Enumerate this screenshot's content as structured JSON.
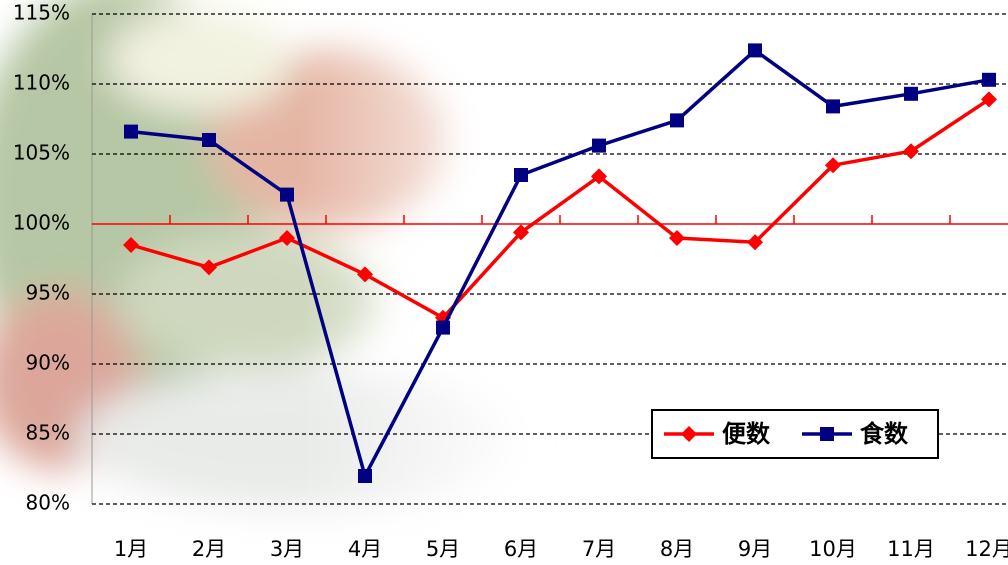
{
  "chart_data": {
    "type": "line",
    "categories": [
      "1月",
      "2月",
      "3月",
      "4月",
      "5月",
      "6月",
      "7月",
      "8月",
      "9月",
      "10月",
      "11月",
      "12月"
    ],
    "series": [
      {
        "name": "便数",
        "color": "#ff0000",
        "marker": "diamond",
        "values": [
          98.5,
          96.9,
          99.0,
          96.4,
          93.3,
          99.4,
          103.4,
          99.0,
          98.7,
          104.2,
          105.2,
          108.9
        ]
      },
      {
        "name": "食数",
        "color": "#000080",
        "marker": "square",
        "values": [
          106.6,
          106.0,
          102.1,
          82.0,
          92.6,
          103.5,
          105.6,
          107.4,
          112.4,
          108.4,
          109.3,
          110.3
        ]
      }
    ],
    "ylim": [
      80,
      115
    ],
    "yticks": [
      {
        "value": 80,
        "label": "80%"
      },
      {
        "value": 85,
        "label": "85%"
      },
      {
        "value": 90,
        "label": "90%"
      },
      {
        "value": 95,
        "label": "95%"
      },
      {
        "value": 100,
        "label": "100%"
      },
      {
        "value": 105,
        "label": "105%"
      },
      {
        "value": 110,
        "label": "110%"
      },
      {
        "value": 115,
        "label": "115%"
      }
    ],
    "axis_cross": 100,
    "grid": true,
    "legend": "lower right"
  }
}
